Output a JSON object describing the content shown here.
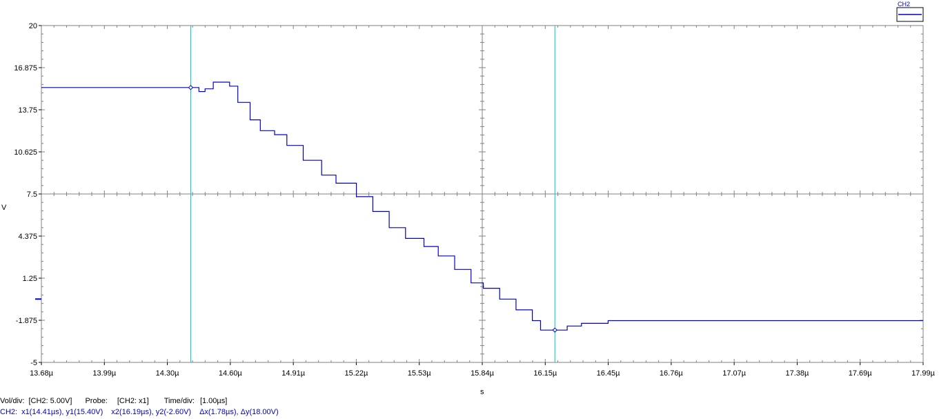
{
  "chart_data": {
    "type": "line",
    "xlabel": "s",
    "ylabel": "V",
    "xlim": [
      13.68,
      17.99
    ],
    "ylim": [
      -5,
      20
    ],
    "x_unit": "µs",
    "x_ticks": [
      "13.68µ",
      "13.99µ",
      "14.30µ",
      "14.60µ",
      "14.91µ",
      "15.22µ",
      "15.53µ",
      "15.84µ",
      "16.15µ",
      "16.45µ",
      "16.76µ",
      "17.07µ",
      "17.38µ",
      "17.69µ",
      "17.99µ"
    ],
    "y_ticks": [
      "20",
      "16.875",
      "13.75",
      "10.625",
      "7.5",
      "4.375",
      "1.25",
      "-1.875",
      "-5"
    ],
    "grid": "center cross",
    "legend": "top-right",
    "series": [
      {
        "name": "CH2",
        "color": "#0000c8",
        "x": [
          13.68,
          14.4,
          14.45,
          14.48,
          14.52,
          14.56,
          14.6,
          14.64,
          14.7,
          14.75,
          14.82,
          14.88,
          14.96,
          15.05,
          15.12,
          15.22,
          15.3,
          15.38,
          15.46,
          15.55,
          15.62,
          15.7,
          15.78,
          15.84,
          15.92,
          16.0,
          16.08,
          16.12,
          16.16,
          16.19,
          16.25,
          16.32,
          16.45,
          17.99
        ],
        "values": [
          15.4,
          15.4,
          15.1,
          15.3,
          15.8,
          15.8,
          15.5,
          14.3,
          13.0,
          12.2,
          11.9,
          11.1,
          10.0,
          8.9,
          8.3,
          7.3,
          6.2,
          5.0,
          4.2,
          3.6,
          2.9,
          1.9,
          0.9,
          0.5,
          -0.3,
          -1.1,
          -1.9,
          -2.6,
          -2.6,
          -2.6,
          -2.3,
          -2.1,
          -1.9,
          -1.9
        ]
      }
    ],
    "cursors": [
      {
        "x": 14.41,
        "y": 15.4,
        "color": "#00c8c8"
      },
      {
        "x": 16.19,
        "y": -2.6,
        "color": "#00c8c8"
      }
    ],
    "ground_marker": -0.3
  },
  "legend": {
    "label": "CH2"
  },
  "status": {
    "voltdiv_label": "Vol/div:",
    "voltdiv_value": "[CH2: 5.00V]",
    "probe_label": "Probe:",
    "probe_value": "[CH2: x1]",
    "timediv_label": "Time/div:",
    "timediv_value": "[1.00µs]",
    "cursor_channel": "CH2:",
    "x1": "x1(14.41µs), y1(15.40V)",
    "x2": "x2(16.19µs), y2(-2.60V)",
    "delta": "Δx(1.78µs), Δy(18.00V)"
  }
}
